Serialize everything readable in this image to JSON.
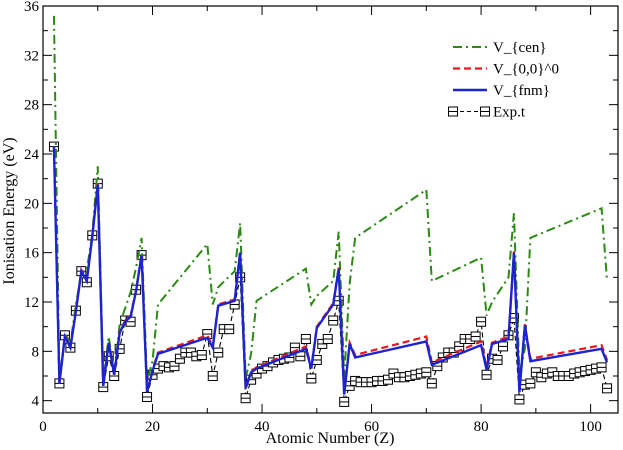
{
  "chart_data": {
    "type": "line",
    "title": "",
    "xlabel": "Atomic Number (Z)",
    "ylabel": "Ionisation Energy (eV)",
    "xlim": [
      0,
      105
    ],
    "ylim": [
      3,
      36
    ],
    "xticks": [
      0,
      20,
      40,
      60,
      80,
      100
    ],
    "yticks": [
      4,
      8,
      12,
      16,
      20,
      24,
      28,
      32,
      36
    ],
    "legend_position": "top-right",
    "series": [
      {
        "name": "V_{cen}",
        "color": "#2a8a12",
        "style": "dashdot",
        "marker": "none",
        "points": [
          [
            2,
            35.2
          ],
          [
            3,
            5.5
          ],
          [
            4,
            9.5
          ],
          [
            5,
            8.6
          ],
          [
            6,
            11.8
          ],
          [
            7,
            14.3
          ],
          [
            8,
            14.6
          ],
          [
            9,
            17.5
          ],
          [
            10,
            23.0
          ],
          [
            11,
            5.5
          ],
          [
            12,
            9.2
          ],
          [
            13,
            6.2
          ],
          [
            14,
            10.2
          ],
          [
            15,
            11.5
          ],
          [
            16,
            12.8
          ],
          [
            17,
            14.8
          ],
          [
            18,
            17.2
          ],
          [
            19,
            5.6
          ],
          [
            20,
            7.2
          ],
          [
            21,
            11.8
          ],
          [
            30,
            16.7
          ],
          [
            31,
            11.8
          ],
          [
            32,
            13.2
          ],
          [
            35,
            14.5
          ],
          [
            36,
            18.4
          ],
          [
            37,
            5.8
          ],
          [
            38,
            7.8
          ],
          [
            39,
            12.1
          ],
          [
            48,
            14.7
          ],
          [
            49,
            11.8
          ],
          [
            50,
            12.5
          ],
          [
            53,
            13.7
          ],
          [
            54,
            17.7
          ],
          [
            55,
            5.9
          ],
          [
            56,
            13.5
          ],
          [
            57,
            17.2
          ],
          [
            70,
            21.1
          ],
          [
            71,
            13.7
          ],
          [
            80,
            15.6
          ],
          [
            81,
            10.9
          ],
          [
            82,
            12.0
          ],
          [
            85,
            14.0
          ],
          [
            86,
            19.2
          ],
          [
            87,
            6.2
          ],
          [
            88,
            8.2
          ],
          [
            89,
            17.2
          ],
          [
            102,
            19.6
          ],
          [
            103,
            13.7
          ]
        ]
      },
      {
        "name": "V_{0,0}^0",
        "color": "#e41a1c",
        "style": "dashed",
        "marker": "none",
        "points": [
          [
            2,
            24.6
          ],
          [
            3,
            5.4
          ],
          [
            4,
            9.3
          ],
          [
            5,
            8.3
          ],
          [
            6,
            11.3
          ],
          [
            7,
            14.6
          ],
          [
            8,
            13.8
          ],
          [
            9,
            17.4
          ],
          [
            10,
            21.6
          ],
          [
            11,
            5.2
          ],
          [
            12,
            8.7
          ],
          [
            13,
            6.1
          ],
          [
            14,
            9.6
          ],
          [
            15,
            10.5
          ],
          [
            16,
            10.9
          ],
          [
            17,
            13.0
          ],
          [
            18,
            15.9
          ],
          [
            19,
            4.7
          ],
          [
            20,
            6.5
          ],
          [
            21,
            7.9
          ],
          [
            30,
            9.3
          ],
          [
            31,
            8.4
          ],
          [
            32,
            11.8
          ],
          [
            35,
            12.2
          ],
          [
            36,
            16.1
          ],
          [
            37,
            5.0
          ],
          [
            38,
            6.4
          ],
          [
            39,
            6.7
          ],
          [
            48,
            8.4
          ],
          [
            49,
            6.7
          ],
          [
            50,
            10.0
          ],
          [
            53,
            11.9
          ],
          [
            54,
            14.8
          ],
          [
            55,
            4.5
          ],
          [
            56,
            8.7
          ],
          [
            57,
            7.7
          ],
          [
            70,
            9.2
          ],
          [
            71,
            7.1
          ],
          [
            80,
            8.8
          ],
          [
            81,
            6.7
          ],
          [
            82,
            8.7
          ],
          [
            85,
            9.2
          ],
          [
            86,
            16.1
          ],
          [
            87,
            4.8
          ],
          [
            88,
            10.2
          ],
          [
            89,
            7.4
          ],
          [
            102,
            8.5
          ],
          [
            103,
            7.3
          ]
        ]
      },
      {
        "name": "V_{fnm}",
        "color": "#1c24d1",
        "style": "solid",
        "marker": "none",
        "points": [
          [
            2,
            24.6
          ],
          [
            3,
            5.4
          ],
          [
            4,
            9.2
          ],
          [
            5,
            8.3
          ],
          [
            6,
            11.2
          ],
          [
            7,
            14.5
          ],
          [
            8,
            13.7
          ],
          [
            9,
            17.3
          ],
          [
            10,
            21.5
          ],
          [
            11,
            5.2
          ],
          [
            12,
            8.7
          ],
          [
            13,
            6.1
          ],
          [
            14,
            9.5
          ],
          [
            15,
            10.4
          ],
          [
            16,
            10.8
          ],
          [
            17,
            12.9
          ],
          [
            18,
            15.8
          ],
          [
            19,
            4.7
          ],
          [
            20,
            6.4
          ],
          [
            21,
            7.8
          ],
          [
            30,
            9.1
          ],
          [
            31,
            8.3
          ],
          [
            32,
            11.7
          ],
          [
            35,
            12.1
          ],
          [
            36,
            16.0
          ],
          [
            37,
            5.0
          ],
          [
            38,
            6.3
          ],
          [
            39,
            6.6
          ],
          [
            48,
            8.2
          ],
          [
            49,
            6.6
          ],
          [
            50,
            9.9
          ],
          [
            53,
            11.8
          ],
          [
            54,
            14.7
          ],
          [
            55,
            4.5
          ],
          [
            56,
            8.6
          ],
          [
            57,
            7.5
          ],
          [
            70,
            8.8
          ],
          [
            71,
            6.9
          ],
          [
            80,
            8.5
          ],
          [
            81,
            6.5
          ],
          [
            82,
            8.6
          ],
          [
            85,
            9.0
          ],
          [
            86,
            16.0
          ],
          [
            87,
            4.7
          ],
          [
            88,
            10.1
          ],
          [
            89,
            7.2
          ],
          [
            102,
            8.2
          ],
          [
            103,
            7.1
          ]
        ]
      },
      {
        "name": "Exp.t",
        "color": "#000000",
        "style": "dashed",
        "marker": "square",
        "points": [
          [
            2,
            24.6
          ],
          [
            3,
            5.4
          ],
          [
            4,
            9.3
          ],
          [
            5,
            8.3
          ],
          [
            6,
            11.3
          ],
          [
            7,
            14.5
          ],
          [
            8,
            13.6
          ],
          [
            9,
            17.4
          ],
          [
            10,
            21.6
          ],
          [
            11,
            5.1
          ],
          [
            12,
            7.6
          ],
          [
            13,
            6.0
          ],
          [
            14,
            8.2
          ],
          [
            15,
            10.5
          ],
          [
            16,
            10.4
          ],
          [
            17,
            13.0
          ],
          [
            18,
            15.8
          ],
          [
            19,
            4.3
          ],
          [
            20,
            6.1
          ],
          [
            21,
            6.6
          ],
          [
            22,
            6.8
          ],
          [
            23,
            6.7
          ],
          [
            24,
            6.8
          ],
          [
            25,
            7.4
          ],
          [
            26,
            7.9
          ],
          [
            27,
            7.9
          ],
          [
            28,
            7.6
          ],
          [
            29,
            7.7
          ],
          [
            30,
            9.4
          ],
          [
            31,
            6.0
          ],
          [
            32,
            7.9
          ],
          [
            33,
            9.8
          ],
          [
            34,
            9.8
          ],
          [
            35,
            11.8
          ],
          [
            36,
            14.0
          ],
          [
            37,
            4.2
          ],
          [
            38,
            5.7
          ],
          [
            39,
            6.2
          ],
          [
            40,
            6.6
          ],
          [
            41,
            6.8
          ],
          [
            42,
            7.1
          ],
          [
            43,
            7.3
          ],
          [
            44,
            7.4
          ],
          [
            45,
            7.5
          ],
          [
            46,
            8.3
          ],
          [
            47,
            7.6
          ],
          [
            48,
            9.0
          ],
          [
            49,
            5.8
          ],
          [
            50,
            7.3
          ],
          [
            51,
            8.6
          ],
          [
            52,
            9.0
          ],
          [
            53,
            10.5
          ],
          [
            54,
            12.1
          ],
          [
            55,
            3.9
          ],
          [
            56,
            5.2
          ],
          [
            57,
            5.6
          ],
          [
            58,
            5.5
          ],
          [
            59,
            5.5
          ],
          [
            60,
            5.5
          ],
          [
            61,
            5.6
          ],
          [
            62,
            5.6
          ],
          [
            63,
            5.7
          ],
          [
            64,
            6.2
          ],
          [
            65,
            5.9
          ],
          [
            66,
            5.9
          ],
          [
            67,
            6.0
          ],
          [
            68,
            6.1
          ],
          [
            69,
            6.2
          ],
          [
            70,
            6.3
          ],
          [
            71,
            5.4
          ],
          [
            72,
            6.8
          ],
          [
            73,
            7.5
          ],
          [
            74,
            7.9
          ],
          [
            75,
            7.9
          ],
          [
            76,
            8.4
          ],
          [
            77,
            9.0
          ],
          [
            78,
            9.0
          ],
          [
            79,
            9.2
          ],
          [
            80,
            10.4
          ],
          [
            81,
            6.1
          ],
          [
            82,
            7.4
          ],
          [
            83,
            7.3
          ],
          [
            84,
            8.4
          ],
          [
            85,
            9.3
          ],
          [
            86,
            10.7
          ],
          [
            87,
            4.1
          ],
          [
            88,
            5.3
          ],
          [
            89,
            5.4
          ],
          [
            90,
            6.3
          ],
          [
            91,
            5.9
          ],
          [
            92,
            6.2
          ],
          [
            93,
            6.3
          ],
          [
            94,
            6.0
          ],
          [
            95,
            6.0
          ],
          [
            96,
            6.0
          ],
          [
            97,
            6.2
          ],
          [
            98,
            6.3
          ],
          [
            99,
            6.4
          ],
          [
            100,
            6.5
          ],
          [
            101,
            6.6
          ],
          [
            102,
            6.7
          ],
          [
            103,
            5.0
          ]
        ]
      }
    ]
  }
}
